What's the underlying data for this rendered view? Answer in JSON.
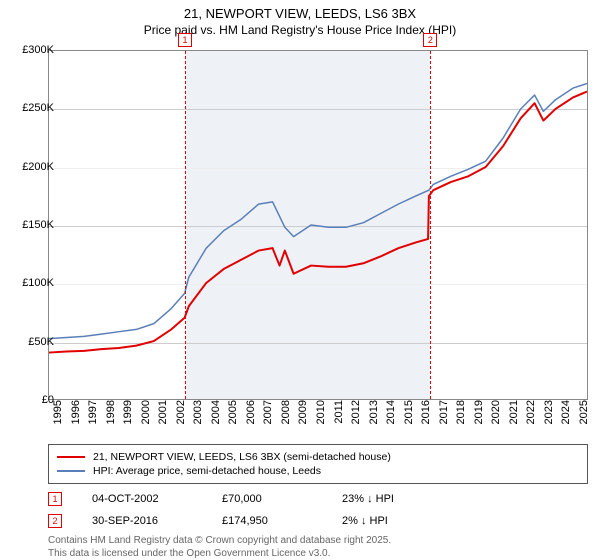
{
  "title_line1": "21, NEWPORT VIEW, LEEDS, LS6 3BX",
  "title_line2": "Price paid vs. HM Land Registry's House Price Index (HPI)",
  "chart": {
    "type": "line",
    "xlim": [
      1995,
      2025.8
    ],
    "ylim": [
      0,
      300000
    ],
    "ytick_step": 50000,
    "yticks": [
      0,
      50000,
      100000,
      150000,
      200000,
      250000,
      300000
    ],
    "ytick_labels": [
      "£0",
      "£50K",
      "£100K",
      "£150K",
      "£200K",
      "£250K",
      "£300K"
    ],
    "xticks": [
      1995,
      1996,
      1997,
      1998,
      1999,
      2000,
      2001,
      2002,
      2003,
      2004,
      2005,
      2006,
      2007,
      2008,
      2009,
      2010,
      2011,
      2012,
      2013,
      2014,
      2015,
      2016,
      2017,
      2018,
      2019,
      2020,
      2021,
      2022,
      2023,
      2024,
      2025
    ],
    "background_color": "#ffffff",
    "grid_color": "#cccccc",
    "grid_alt_color": "#eeeeee",
    "border_color": "#888888",
    "shade_color": "#eef2f7",
    "shade_range": [
      2002.76,
      2016.75
    ],
    "series": {
      "hpi": {
        "label": "HPI: Average price, semi-detached house, Leeds",
        "color": "#5a7fb8",
        "width": 1.5,
        "points": [
          [
            1995,
            52000
          ],
          [
            1996,
            53000
          ],
          [
            1997,
            54000
          ],
          [
            1998,
            56000
          ],
          [
            1999,
            58000
          ],
          [
            2000,
            60000
          ],
          [
            2001,
            65000
          ],
          [
            2002,
            78000
          ],
          [
            2002.76,
            91000
          ],
          [
            2003,
            105000
          ],
          [
            2004,
            130000
          ],
          [
            2005,
            145000
          ],
          [
            2006,
            155000
          ],
          [
            2007,
            168000
          ],
          [
            2007.8,
            170000
          ],
          [
            2008.5,
            148000
          ],
          [
            2009,
            140000
          ],
          [
            2010,
            150000
          ],
          [
            2011,
            148000
          ],
          [
            2012,
            148000
          ],
          [
            2013,
            152000
          ],
          [
            2014,
            160000
          ],
          [
            2015,
            168000
          ],
          [
            2016,
            175000
          ],
          [
            2016.75,
            180000
          ],
          [
            2017,
            185000
          ],
          [
            2018,
            192000
          ],
          [
            2019,
            198000
          ],
          [
            2020,
            205000
          ],
          [
            2021,
            225000
          ],
          [
            2022,
            250000
          ],
          [
            2022.8,
            262000
          ],
          [
            2023.3,
            248000
          ],
          [
            2024,
            258000
          ],
          [
            2025,
            268000
          ],
          [
            2025.8,
            272000
          ]
        ]
      },
      "paid": {
        "label": "21, NEWPORT VIEW, LEEDS, LS6 3BX (semi-detached house)",
        "color": "#e00000",
        "width": 2,
        "points": [
          [
            1995,
            40000
          ],
          [
            1996,
            41000
          ],
          [
            1997,
            41500
          ],
          [
            1998,
            43000
          ],
          [
            1999,
            44000
          ],
          [
            2000,
            46000
          ],
          [
            2001,
            50000
          ],
          [
            2002,
            60000
          ],
          [
            2002.76,
            70000
          ],
          [
            2003,
            80000
          ],
          [
            2004,
            100000
          ],
          [
            2005,
            112000
          ],
          [
            2006,
            120000
          ],
          [
            2007,
            128000
          ],
          [
            2007.8,
            130000
          ],
          [
            2008.2,
            115000
          ],
          [
            2008.5,
            128000
          ],
          [
            2009,
            108000
          ],
          [
            2010,
            115000
          ],
          [
            2011,
            114000
          ],
          [
            2012,
            114000
          ],
          [
            2013,
            117000
          ],
          [
            2014,
            123000
          ],
          [
            2015,
            130000
          ],
          [
            2016,
            135000
          ],
          [
            2016.7,
            138000
          ],
          [
            2016.75,
            174950
          ],
          [
            2017,
            180000
          ],
          [
            2018,
            187000
          ],
          [
            2019,
            192000
          ],
          [
            2020,
            200000
          ],
          [
            2021,
            218000
          ],
          [
            2022,
            242000
          ],
          [
            2022.8,
            255000
          ],
          [
            2023.3,
            240000
          ],
          [
            2024,
            250000
          ],
          [
            2025,
            260000
          ],
          [
            2025.8,
            265000
          ]
        ]
      }
    },
    "markers": [
      {
        "n": "1",
        "x": 2002.76,
        "color": "#e00000"
      },
      {
        "n": "2",
        "x": 2016.75,
        "color": "#e00000"
      }
    ]
  },
  "legend": {
    "paid": "21, NEWPORT VIEW, LEEDS, LS6 3BX (semi-detached house)",
    "hpi": "HPI: Average price, semi-detached house, Leeds"
  },
  "sales": [
    {
      "n": "1",
      "date": "04-OCT-2002",
      "price": "£70,000",
      "delta": "23% ↓ HPI",
      "color": "#e00000"
    },
    {
      "n": "2",
      "date": "30-SEP-2016",
      "price": "£174,950",
      "delta": "2% ↓ HPI",
      "color": "#e00000"
    }
  ],
  "footnote1": "Contains HM Land Registry data © Crown copyright and database right 2025.",
  "footnote2": "This data is licensed under the Open Government Licence v3.0."
}
